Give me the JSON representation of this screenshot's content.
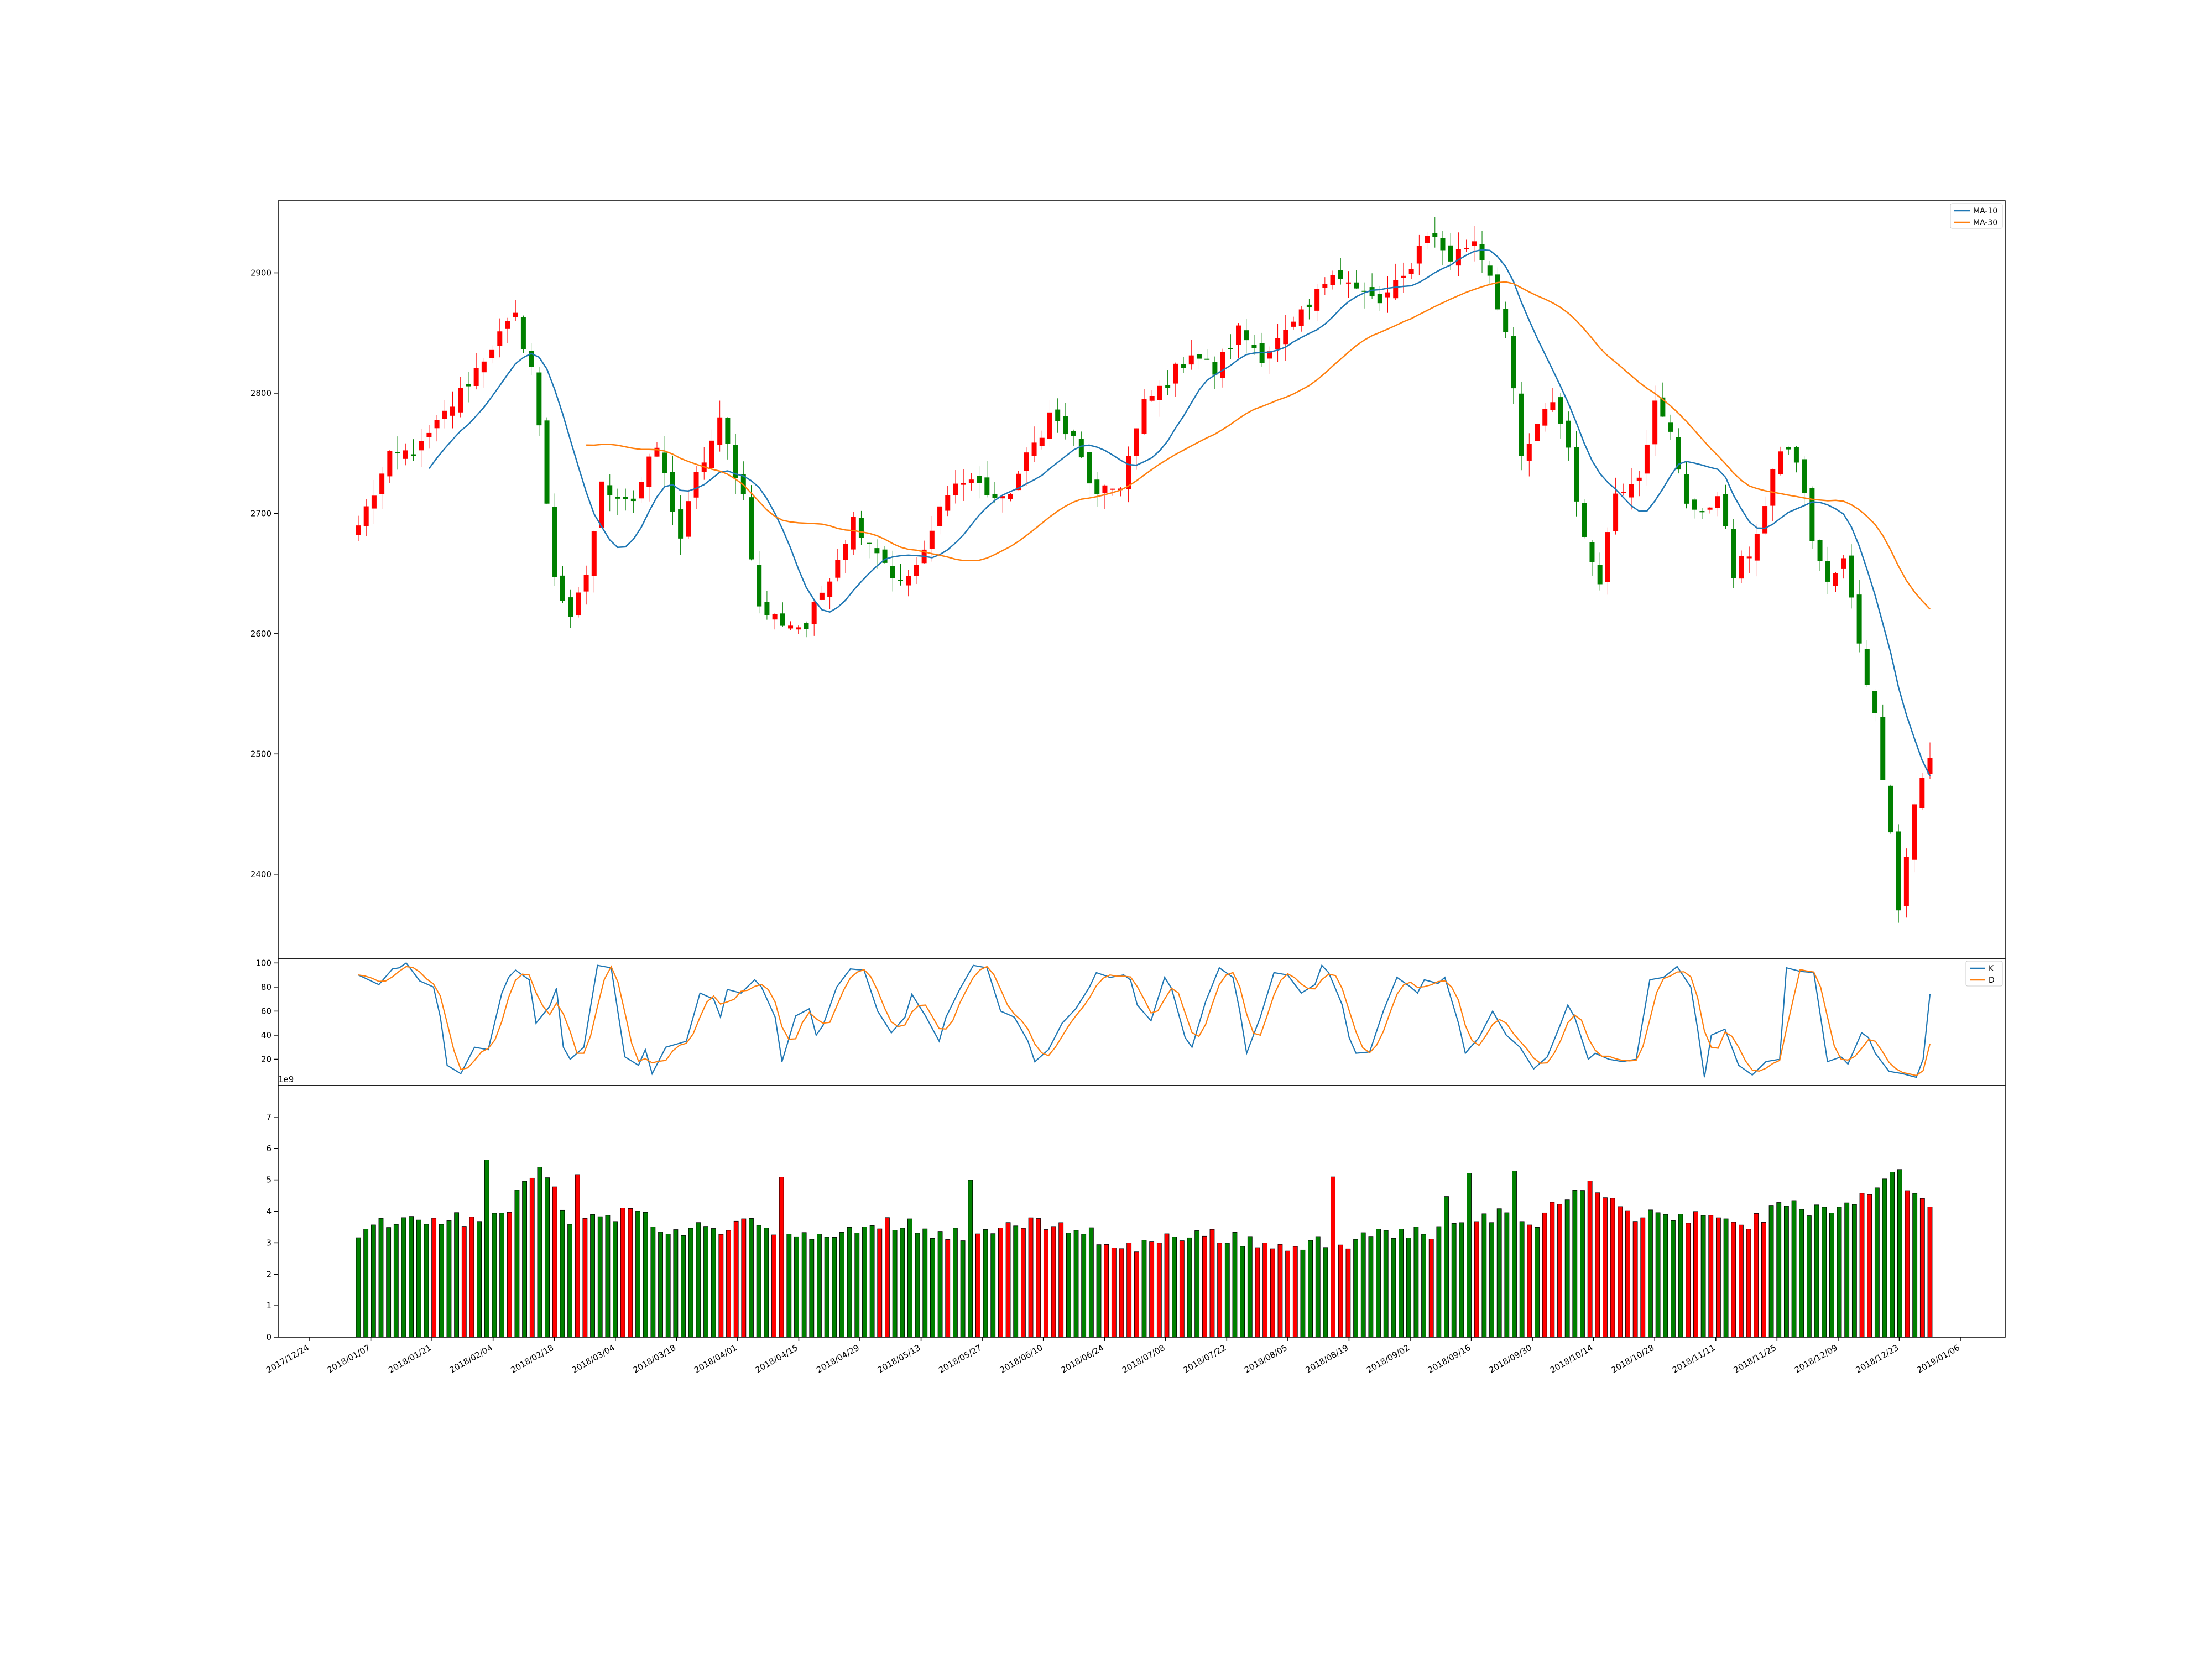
{
  "chart_data": [
    {
      "type": "candlestick",
      "panel": "price",
      "title": "",
      "ylim": [
        2330,
        2960
      ],
      "y_ticks": [
        "2400",
        "2500",
        "2600",
        "2700",
        "2800",
        "2900"
      ],
      "legend": {
        "placement": "top-right",
        "entries": [
          "MA-10",
          "MA-30"
        ]
      },
      "colors": {
        "up": "#ff0000",
        "down": "#008000",
        "ma10": "#1f77b4",
        "ma30": "#ff7f0e"
      },
      "anchors": [
        {
          "i": 0,
          "v": 2690
        },
        {
          "i": 4,
          "v": 2745
        },
        {
          "i": 8,
          "v": 2755
        },
        {
          "i": 13,
          "v": 2800
        },
        {
          "i": 17,
          "v": 2840
        },
        {
          "i": 20,
          "v": 2862
        },
        {
          "i": 22,
          "v": 2822
        },
        {
          "i": 23,
          "v": 2770
        },
        {
          "i": 25,
          "v": 2650
        },
        {
          "i": 27,
          "v": 2608
        },
        {
          "i": 29,
          "v": 2650
        },
        {
          "i": 31,
          "v": 2722
        },
        {
          "i": 35,
          "v": 2712
        },
        {
          "i": 38,
          "v": 2755
        },
        {
          "i": 41,
          "v": 2680
        },
        {
          "i": 43,
          "v": 2730
        },
        {
          "i": 46,
          "v": 2775
        },
        {
          "i": 49,
          "v": 2715
        },
        {
          "i": 51,
          "v": 2620
        },
        {
          "i": 54,
          "v": 2610
        },
        {
          "i": 57,
          "v": 2605
        },
        {
          "i": 60,
          "v": 2650
        },
        {
          "i": 63,
          "v": 2695
        },
        {
          "i": 66,
          "v": 2670
        },
        {
          "i": 69,
          "v": 2640
        },
        {
          "i": 72,
          "v": 2665
        },
        {
          "i": 75,
          "v": 2722
        },
        {
          "i": 78,
          "v": 2728
        },
        {
          "i": 82,
          "v": 2708
        },
        {
          "i": 85,
          "v": 2745
        },
        {
          "i": 88,
          "v": 2782
        },
        {
          "i": 91,
          "v": 2760
        },
        {
          "i": 94,
          "v": 2712
        },
        {
          "i": 97,
          "v": 2725
        },
        {
          "i": 100,
          "v": 2790
        },
        {
          "i": 103,
          "v": 2810
        },
        {
          "i": 106,
          "v": 2835
        },
        {
          "i": 109,
          "v": 2818
        },
        {
          "i": 112,
          "v": 2852
        },
        {
          "i": 115,
          "v": 2832
        },
        {
          "i": 118,
          "v": 2848
        },
        {
          "i": 121,
          "v": 2870
        },
        {
          "i": 124,
          "v": 2905
        },
        {
          "i": 127,
          "v": 2885
        },
        {
          "i": 130,
          "v": 2875
        },
        {
          "i": 133,
          "v": 2895
        },
        {
          "i": 136,
          "v": 2935
        },
        {
          "i": 139,
          "v": 2912
        },
        {
          "i": 142,
          "v": 2928
        },
        {
          "i": 144,
          "v": 2900
        },
        {
          "i": 146,
          "v": 2850
        },
        {
          "i": 148,
          "v": 2745
        },
        {
          "i": 150,
          "v": 2770
        },
        {
          "i": 152,
          "v": 2795
        },
        {
          "i": 154,
          "v": 2755
        },
        {
          "i": 156,
          "v": 2675
        },
        {
          "i": 158,
          "v": 2648
        },
        {
          "i": 160,
          "v": 2718
        },
        {
          "i": 163,
          "v": 2735
        },
        {
          "i": 165,
          "v": 2790
        },
        {
          "i": 167,
          "v": 2765
        },
        {
          "i": 169,
          "v": 2712
        },
        {
          "i": 171,
          "v": 2695
        },
        {
          "i": 173,
          "v": 2720
        },
        {
          "i": 175,
          "v": 2648
        },
        {
          "i": 177,
          "v": 2668
        },
        {
          "i": 179,
          "v": 2705
        },
        {
          "i": 181,
          "v": 2755
        },
        {
          "i": 183,
          "v": 2745
        },
        {
          "i": 185,
          "v": 2680
        },
        {
          "i": 187,
          "v": 2640
        },
        {
          "i": 189,
          "v": 2660
        },
        {
          "i": 191,
          "v": 2595
        },
        {
          "i": 193,
          "v": 2530
        },
        {
          "i": 195,
          "v": 2440
        },
        {
          "i": 196,
          "v": 2370
        },
        {
          "i": 198,
          "v": 2460
        },
        {
          "i": 200,
          "v": 2495
        }
      ],
      "n_bars": 201
    },
    {
      "type": "line",
      "panel": "stochastic",
      "ylim": [
        0,
        102
      ],
      "y_ticks": [
        "20",
        "40",
        "60",
        "80",
        "100"
      ],
      "legend": {
        "placement": "top-right",
        "entries": [
          "K",
          "D"
        ]
      },
      "series_names": [
        "K",
        "D"
      ],
      "k_anchors": [
        {
          "i": 0,
          "v": 90
        },
        {
          "i": 3,
          "v": 82
        },
        {
          "i": 5,
          "v": 95
        },
        {
          "i": 6,
          "v": 96
        },
        {
          "i": 7,
          "v": 100
        },
        {
          "i": 9,
          "v": 85
        },
        {
          "i": 11,
          "v": 80
        },
        {
          "i": 12,
          "v": 55
        },
        {
          "i": 13,
          "v": 15
        },
        {
          "i": 15,
          "v": 8
        },
        {
          "i": 17,
          "v": 30
        },
        {
          "i": 19,
          "v": 28
        },
        {
          "i": 21,
          "v": 75
        },
        {
          "i": 22,
          "v": 88
        },
        {
          "i": 23,
          "v": 94
        },
        {
          "i": 25,
          "v": 86
        },
        {
          "i": 26,
          "v": 50
        },
        {
          "i": 28,
          "v": 64
        },
        {
          "i": 29,
          "v": 79
        },
        {
          "i": 30,
          "v": 30
        },
        {
          "i": 31,
          "v": 20
        },
        {
          "i": 33,
          "v": 30
        },
        {
          "i": 35,
          "v": 98
        },
        {
          "i": 37,
          "v": 96
        },
        {
          "i": 39,
          "v": 22
        },
        {
          "i": 41,
          "v": 15
        },
        {
          "i": 42,
          "v": 28
        },
        {
          "i": 43,
          "v": 8
        },
        {
          "i": 45,
          "v": 30
        },
        {
          "i": 48,
          "v": 35
        },
        {
          "i": 50,
          "v": 75
        },
        {
          "i": 52,
          "v": 70
        },
        {
          "i": 53,
          "v": 55
        },
        {
          "i": 54,
          "v": 78
        },
        {
          "i": 56,
          "v": 75
        },
        {
          "i": 58,
          "v": 86
        },
        {
          "i": 59,
          "v": 80
        },
        {
          "i": 61,
          "v": 55
        },
        {
          "i": 62,
          "v": 18
        },
        {
          "i": 64,
          "v": 56
        },
        {
          "i": 66,
          "v": 62
        },
        {
          "i": 67,
          "v": 40
        },
        {
          "i": 68,
          "v": 48
        },
        {
          "i": 70,
          "v": 80
        },
        {
          "i": 72,
          "v": 95
        },
        {
          "i": 74,
          "v": 94
        },
        {
          "i": 76,
          "v": 60
        },
        {
          "i": 78,
          "v": 42
        },
        {
          "i": 80,
          "v": 55
        },
        {
          "i": 81,
          "v": 74
        },
        {
          "i": 83,
          "v": 56
        },
        {
          "i": 85,
          "v": 35
        },
        {
          "i": 86,
          "v": 55
        },
        {
          "i": 88,
          "v": 78
        },
        {
          "i": 90,
          "v": 98
        },
        {
          "i": 92,
          "v": 96
        },
        {
          "i": 94,
          "v": 60
        },
        {
          "i": 96,
          "v": 55
        },
        {
          "i": 98,
          "v": 35
        },
        {
          "i": 99,
          "v": 18
        },
        {
          "i": 101,
          "v": 28
        },
        {
          "i": 103,
          "v": 50
        },
        {
          "i": 105,
          "v": 62
        },
        {
          "i": 107,
          "v": 80
        },
        {
          "i": 108,
          "v": 92
        },
        {
          "i": 110,
          "v": 88
        },
        {
          "i": 112,
          "v": 90
        },
        {
          "i": 113,
          "v": 86
        },
        {
          "i": 114,
          "v": 65
        },
        {
          "i": 116,
          "v": 52
        },
        {
          "i": 118,
          "v": 88
        },
        {
          "i": 119,
          "v": 79
        },
        {
          "i": 121,
          "v": 38
        },
        {
          "i": 122,
          "v": 30
        },
        {
          "i": 124,
          "v": 68
        },
        {
          "i": 126,
          "v": 96
        },
        {
          "i": 128,
          "v": 88
        },
        {
          "i": 129,
          "v": 60
        },
        {
          "i": 130,
          "v": 25
        },
        {
          "i": 132,
          "v": 55
        },
        {
          "i": 134,
          "v": 92
        },
        {
          "i": 136,
          "v": 90
        },
        {
          "i": 138,
          "v": 75
        },
        {
          "i": 140,
          "v": 82
        },
        {
          "i": 141,
          "v": 98
        },
        {
          "i": 142,
          "v": 92
        },
        {
          "i": 144,
          "v": 65
        },
        {
          "i": 145,
          "v": 38
        },
        {
          "i": 146,
          "v": 25
        },
        {
          "i": 148,
          "v": 26
        },
        {
          "i": 150,
          "v": 60
        },
        {
          "i": 152,
          "v": 88
        },
        {
          "i": 154,
          "v": 80
        },
        {
          "i": 155,
          "v": 75
        },
        {
          "i": 156,
          "v": 86
        },
        {
          "i": 158,
          "v": 83
        },
        {
          "i": 159,
          "v": 88
        },
        {
          "i": 161,
          "v": 50
        },
        {
          "i": 162,
          "v": 25
        },
        {
          "i": 164,
          "v": 38
        },
        {
          "i": 166,
          "v": 60
        },
        {
          "i": 168,
          "v": 40
        },
        {
          "i": 170,
          "v": 30
        },
        {
          "i": 172,
          "v": 12
        },
        {
          "i": 174,
          "v": 22
        },
        {
          "i": 176,
          "v": 50
        },
        {
          "i": 177,
          "v": 65
        },
        {
          "i": 178,
          "v": 55
        },
        {
          "i": 180,
          "v": 20
        },
        {
          "i": 181,
          "v": 25
        },
        {
          "i": 183,
          "v": 20
        },
        {
          "i": 185,
          "v": 18
        },
        {
          "i": 187,
          "v": 20
        },
        {
          "i": 189,
          "v": 86
        },
        {
          "i": 191,
          "v": 88
        },
        {
          "i": 193,
          "v": 97
        },
        {
          "i": 195,
          "v": 80
        },
        {
          "i": 196,
          "v": 45
        },
        {
          "i": 197,
          "v": 5
        },
        {
          "i": 198,
          "v": 40
        },
        {
          "i": 200,
          "v": 45
        },
        {
          "i": 202,
          "v": 15
        },
        {
          "i": 204,
          "v": 7
        },
        {
          "i": 206,
          "v": 18
        },
        {
          "i": 208,
          "v": 20
        },
        {
          "i": 209,
          "v": 96
        },
        {
          "i": 211,
          "v": 93
        },
        {
          "i": 213,
          "v": 92
        },
        {
          "i": 214,
          "v": 55
        },
        {
          "i": 215,
          "v": 18
        },
        {
          "i": 217,
          "v": 22
        },
        {
          "i": 218,
          "v": 16
        },
        {
          "i": 220,
          "v": 42
        },
        {
          "i": 221,
          "v": 38
        },
        {
          "i": 222,
          "v": 25
        },
        {
          "i": 224,
          "v": 10
        },
        {
          "i": 226,
          "v": 8
        },
        {
          "i": 228,
          "v": 5
        },
        {
          "i": 229,
          "v": 20
        },
        {
          "i": 230,
          "v": 74
        }
      ],
      "n_points": 231
    },
    {
      "type": "bar",
      "panel": "volume",
      "ylim": [
        0,
        8.0
      ],
      "y_ticks": [
        "0",
        "1",
        "2",
        "3",
        "4",
        "5",
        "6",
        "7"
      ],
      "offset_text": "1e9",
      "colors": {
        "up": "#ff0000",
        "down": "#008000",
        "edge": "#000000"
      },
      "anchors": [
        {
          "i": 0,
          "v": 3.4
        },
        {
          "i": 4,
          "v": 3.6
        },
        {
          "i": 8,
          "v": 3.6
        },
        {
          "i": 12,
          "v": 3.8
        },
        {
          "i": 16,
          "v": 3.6
        },
        {
          "i": 20,
          "v": 4.2
        },
        {
          "i": 24,
          "v": 5.6
        },
        {
          "i": 28,
          "v": 3.8
        },
        {
          "i": 32,
          "v": 3.6
        },
        {
          "i": 36,
          "v": 4.2
        },
        {
          "i": 40,
          "v": 3.3
        },
        {
          "i": 44,
          "v": 3.4
        },
        {
          "i": 48,
          "v": 3.5
        },
        {
          "i": 52,
          "v": 3.7
        },
        {
          "i": 56,
          "v": 3.3
        },
        {
          "i": 60,
          "v": 3.1
        },
        {
          "i": 64,
          "v": 3.3
        },
        {
          "i": 68,
          "v": 3.5
        },
        {
          "i": 72,
          "v": 3.7
        },
        {
          "i": 76,
          "v": 3.3
        },
        {
          "i": 80,
          "v": 3.3
        },
        {
          "i": 84,
          "v": 3.4
        },
        {
          "i": 88,
          "v": 3.6
        },
        {
          "i": 92,
          "v": 3.5
        },
        {
          "i": 96,
          "v": 3.5
        },
        {
          "i": 100,
          "v": 2.8
        },
        {
          "i": 104,
          "v": 2.9
        },
        {
          "i": 108,
          "v": 3.3
        },
        {
          "i": 112,
          "v": 3.2
        },
        {
          "i": 116,
          "v": 3.2
        },
        {
          "i": 120,
          "v": 2.9
        },
        {
          "i": 124,
          "v": 2.9
        },
        {
          "i": 128,
          "v": 3.1
        },
        {
          "i": 132,
          "v": 3.0
        },
        {
          "i": 136,
          "v": 3.4
        },
        {
          "i": 140,
          "v": 3.3
        },
        {
          "i": 144,
          "v": 3.4
        },
        {
          "i": 148,
          "v": 3.6
        },
        {
          "i": 152,
          "v": 4.0
        },
        {
          "i": 156,
          "v": 3.5
        },
        {
          "i": 160,
          "v": 4.6
        },
        {
          "i": 164,
          "v": 4.8
        },
        {
          "i": 168,
          "v": 3.8
        },
        {
          "i": 172,
          "v": 4.0
        },
        {
          "i": 176,
          "v": 3.8
        },
        {
          "i": 180,
          "v": 3.6
        },
        {
          "i": 184,
          "v": 3.6
        },
        {
          "i": 188,
          "v": 4.2
        },
        {
          "i": 192,
          "v": 4.1
        },
        {
          "i": 196,
          "v": 4.0
        },
        {
          "i": 200,
          "v": 4.5
        },
        {
          "i": 204,
          "v": 5.2
        },
        {
          "i": 208,
          "v": 4.0
        }
      ],
      "n_bars": 209
    }
  ],
  "x_axis": {
    "tick_labels": [
      "2017/12/24",
      "2018/01/07",
      "2018/01/21",
      "2018/02/04",
      "2018/02/18",
      "2018/03/04",
      "2018/03/18",
      "2018/04/01",
      "2018/04/15",
      "2018/04/29",
      "2018/05/13",
      "2018/05/27",
      "2018/06/10",
      "2018/06/24",
      "2018/07/08",
      "2018/07/22",
      "2018/08/05",
      "2018/08/19",
      "2018/09/02",
      "2018/09/16",
      "2018/09/30",
      "2018/10/14",
      "2018/10/28",
      "2018/11/11",
      "2018/11/25",
      "2018/12/09",
      "2018/12/23",
      "2019/01/06"
    ]
  }
}
